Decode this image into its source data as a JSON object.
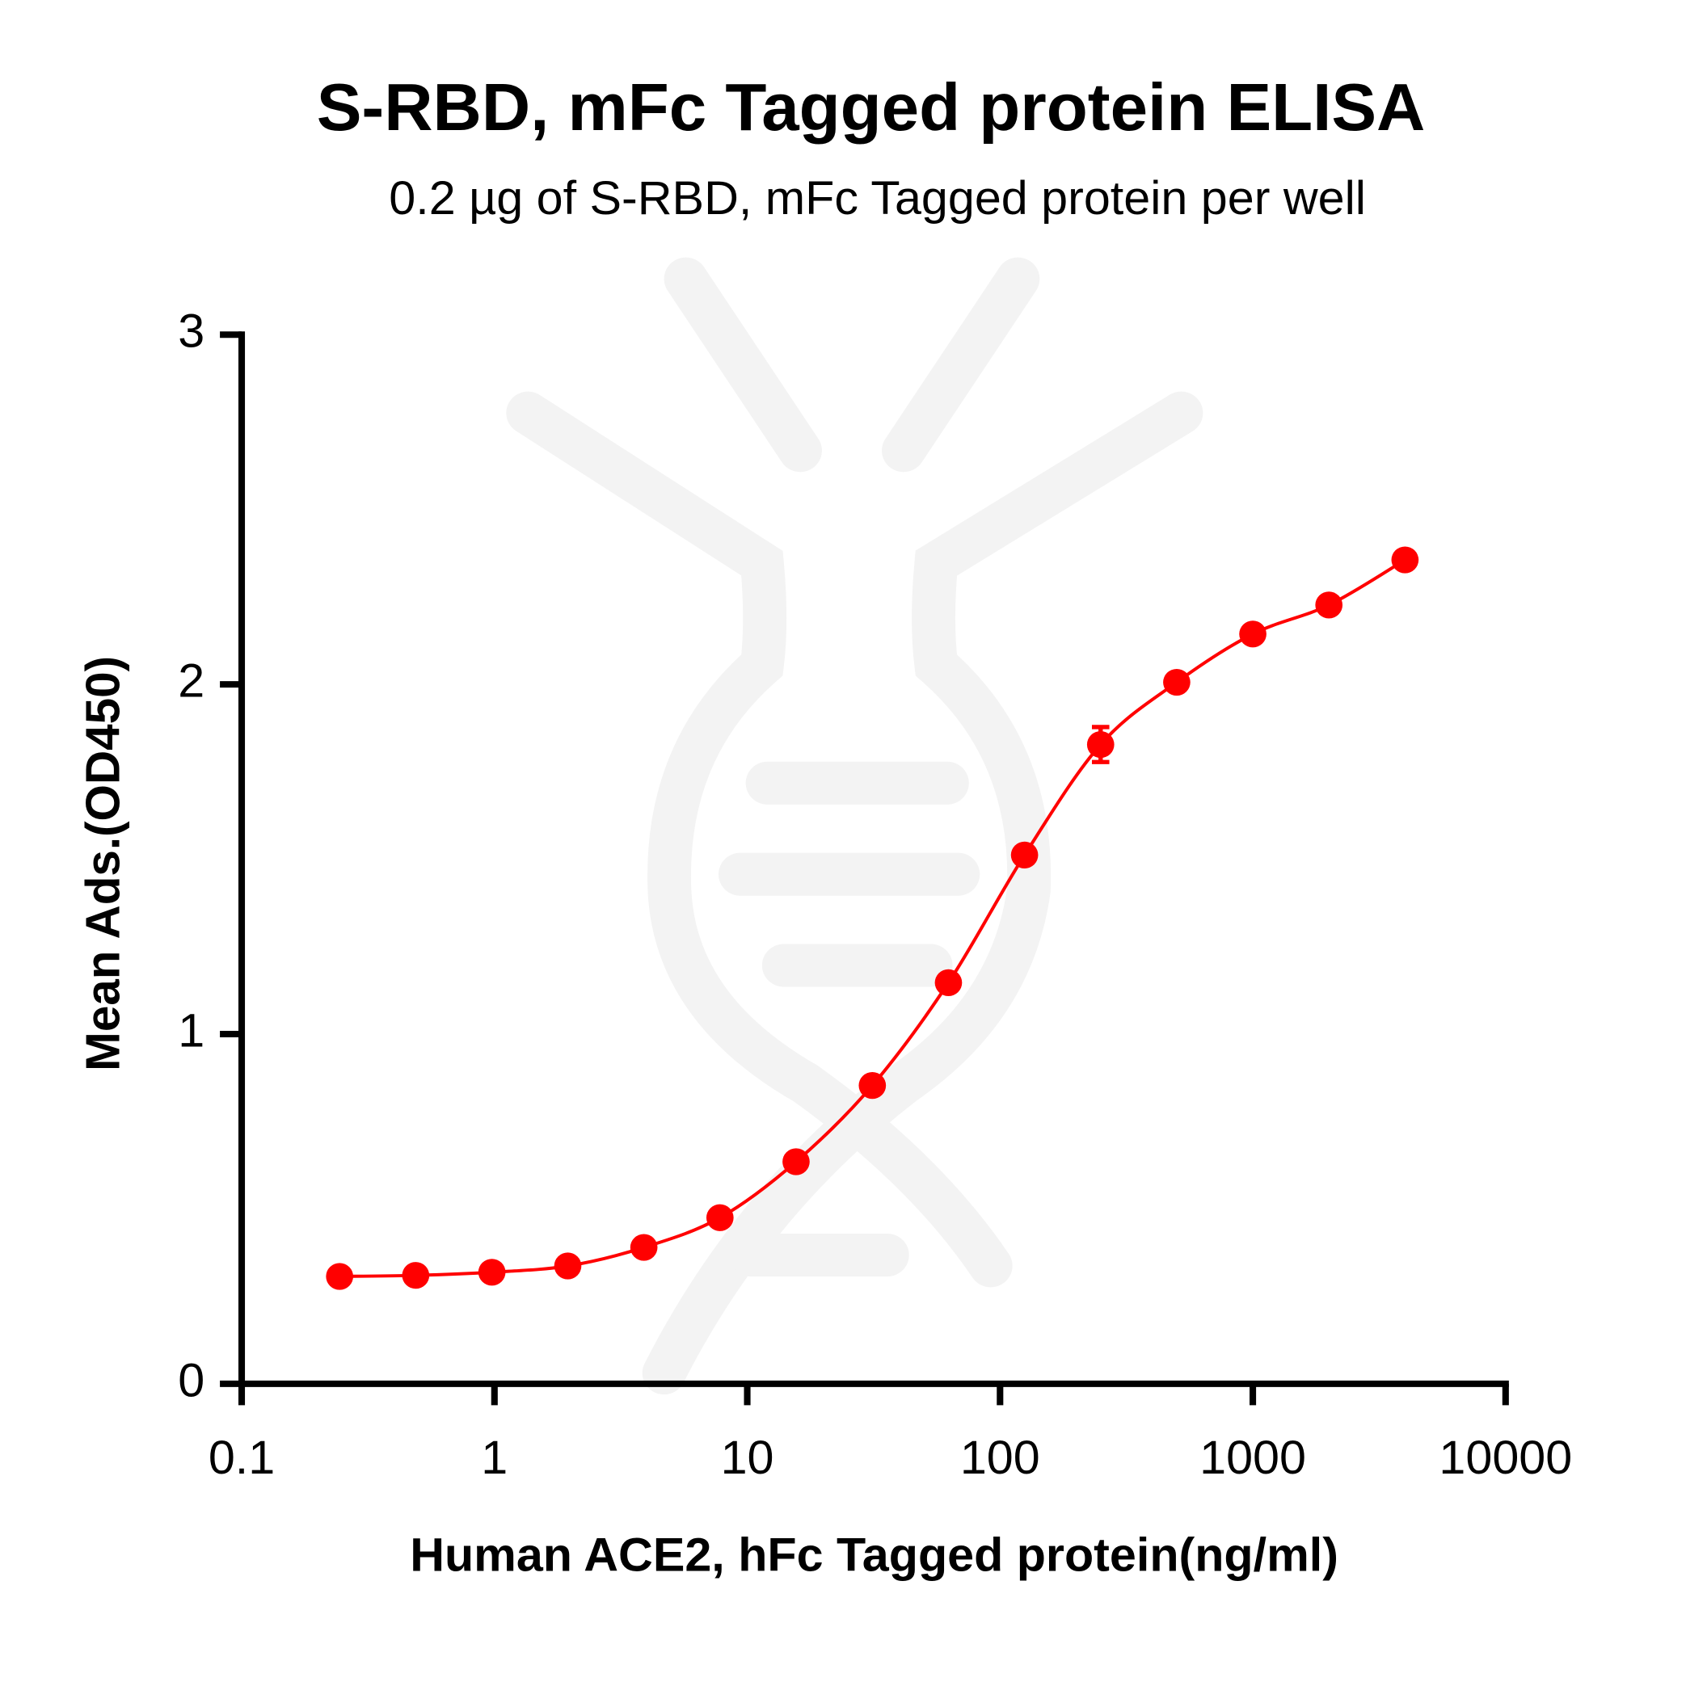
{
  "chart_data": {
    "type": "scatter",
    "title": "S-RBD, mFc Tagged protein ELISA",
    "subtitle": "0.2 µg of S-RBD, mFc Tagged protein per well",
    "xlabel": "Human ACE2, hFc Tagged protein(ng/ml)",
    "ylabel": "Mean Ads.(OD450)",
    "xscale": "log",
    "xlim": [
      0.1,
      10000
    ],
    "xticks": [
      0.1,
      1,
      10,
      100,
      1000,
      10000
    ],
    "ylim": [
      0,
      3
    ],
    "yticks": [
      0,
      1,
      2,
      3
    ],
    "series": [
      {
        "color": "#ff0000",
        "x": [
          0.244,
          0.488,
          0.977,
          1.95,
          3.9,
          7.8,
          15.6,
          31.25,
          62.5,
          125,
          250,
          500,
          1000,
          2000,
          4000
        ],
        "values": [
          0.307,
          0.31,
          0.319,
          0.337,
          0.39,
          0.475,
          0.635,
          0.853,
          1.147,
          1.512,
          1.828,
          2.006,
          2.144,
          2.227,
          2.356
        ],
        "errors": [
          null,
          null,
          null,
          null,
          null,
          null,
          null,
          null,
          null,
          null,
          0.05,
          null,
          null,
          null,
          null
        ]
      }
    ]
  }
}
